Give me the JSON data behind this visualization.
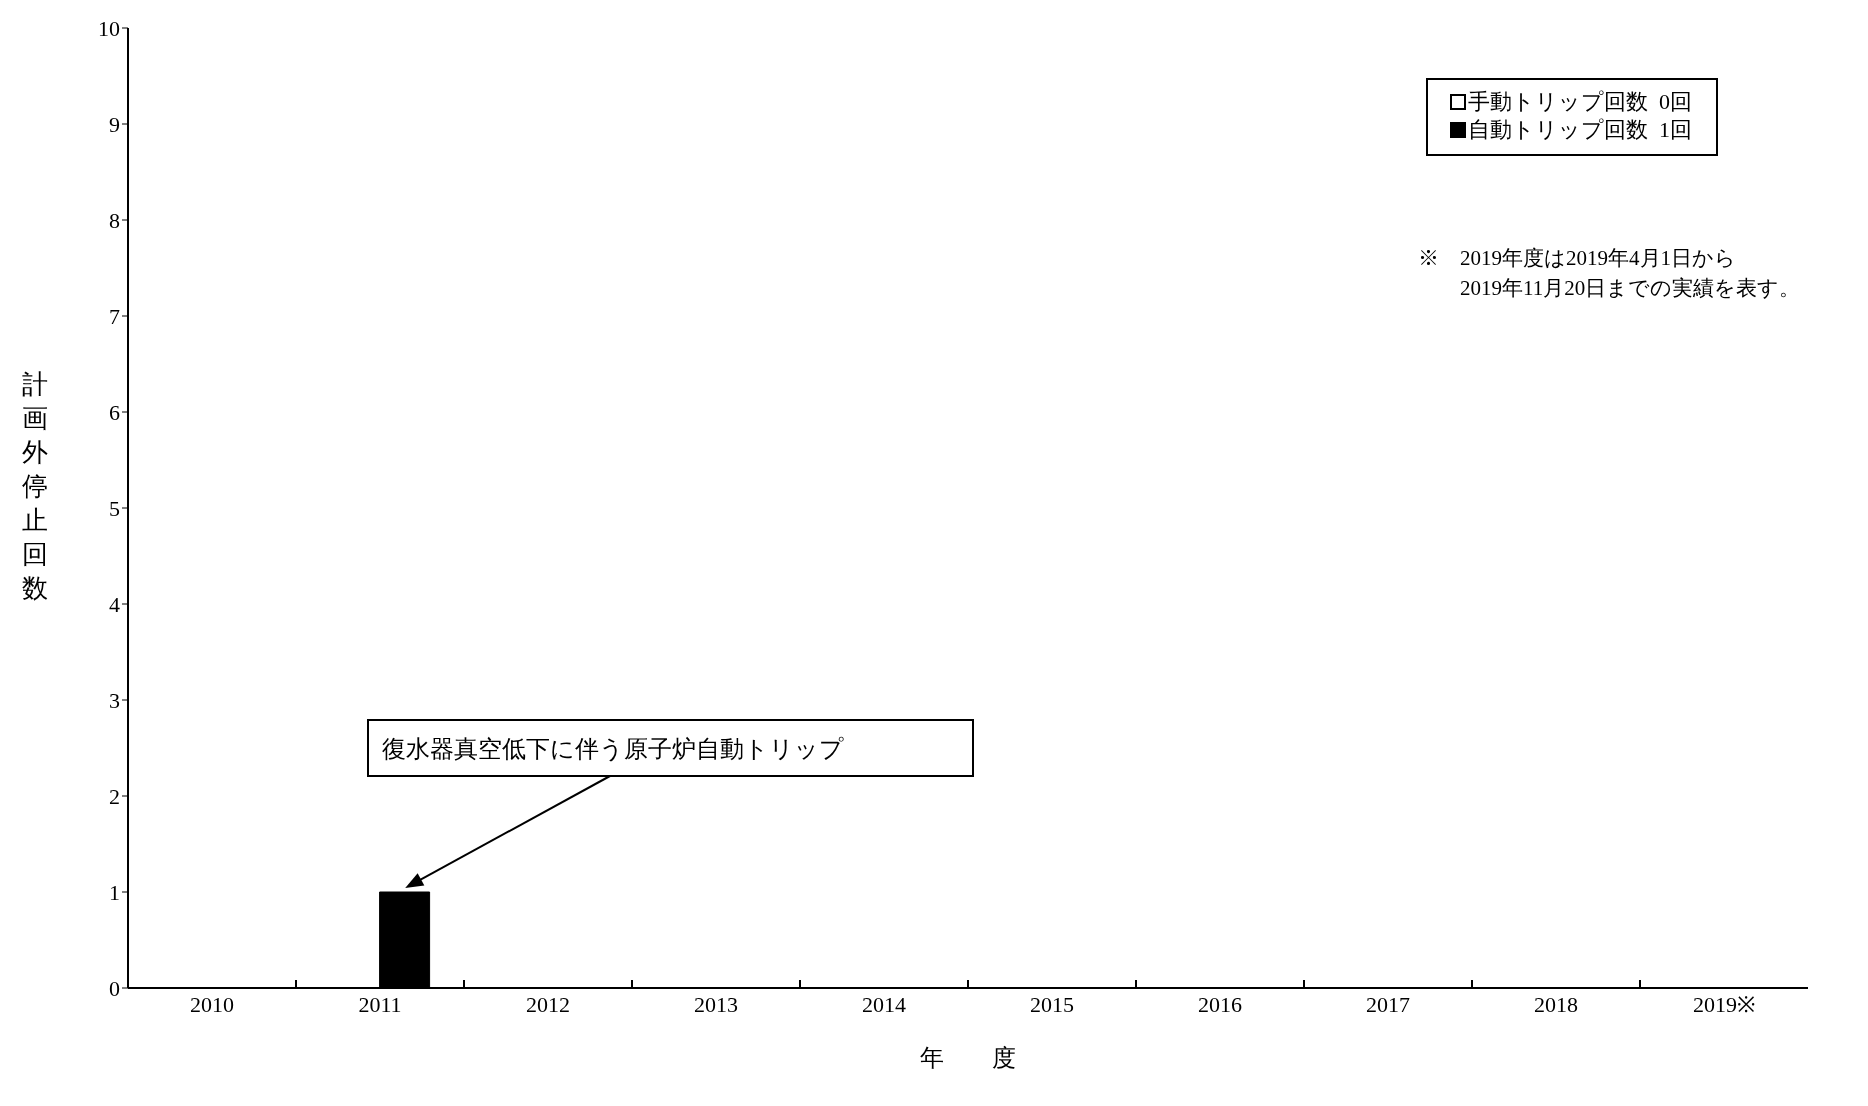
{
  "chart_data": {
    "type": "bar",
    "categories": [
      "2010",
      "2011",
      "2012",
      "2013",
      "2014",
      "2015",
      "2016",
      "2017",
      "2018",
      "2019※"
    ],
    "series": [
      {
        "name": "手動トリップ回数  0回",
        "color": "#ffffff",
        "values": [
          0,
          0,
          0,
          0,
          0,
          0,
          0,
          0,
          0,
          0
        ]
      },
      {
        "name": "自動トリップ回数  1回",
        "color": "#000000",
        "values": [
          0,
          1,
          0,
          0,
          0,
          0,
          0,
          0,
          0,
          0
        ]
      }
    ],
    "xlabel": "年　　度",
    "ylabel": "計画外停止回数",
    "ylim": [
      0,
      10
    ],
    "yticks": [
      0,
      1,
      2,
      3,
      4,
      5,
      6,
      7,
      8,
      9,
      10
    ],
    "grid": false,
    "legend": "top right",
    "annotations": [
      "復水器真空低下に伴う原子炉自動トリップ",
      "※　2019年度は2019年4月1日から\n　　2019年11月20日までの実績を表す。"
    ]
  }
}
